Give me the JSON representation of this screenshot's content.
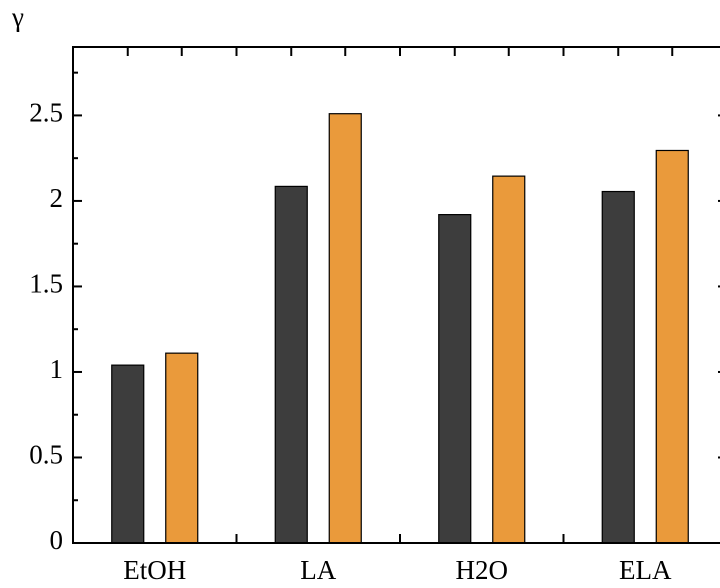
{
  "chart_data": {
    "type": "bar",
    "y_label": "γ",
    "categories": [
      "EtOH",
      "LA",
      "H2O",
      "ELA"
    ],
    "series": [
      {
        "color": "#3d3d3d",
        "values": [
          1.04,
          2.085,
          1.92,
          2.055
        ]
      },
      {
        "color": "#ea9a3b",
        "values": [
          1.11,
          2.51,
          2.145,
          2.295
        ]
      }
    ],
    "ylim": [
      0,
      2.9
    ],
    "yticks": [
      0,
      0.5,
      1,
      1.5,
      2,
      2.5
    ]
  }
}
